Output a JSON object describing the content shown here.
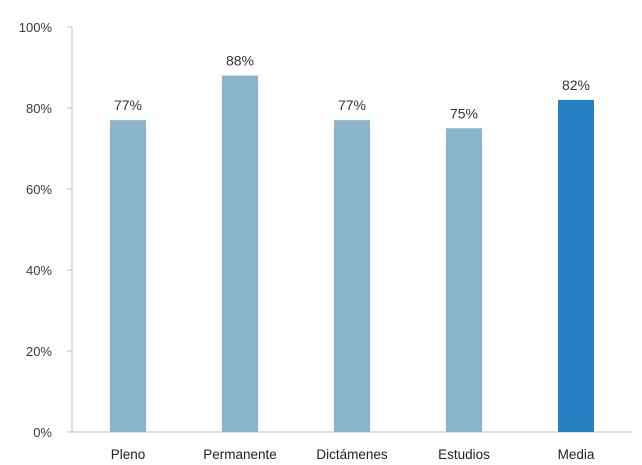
{
  "chart_data": {
    "type": "bar",
    "categories": [
      "Pleno",
      "Permanente",
      "Dictámenes",
      "Estudios",
      "Media"
    ],
    "values": [
      77,
      88,
      77,
      75,
      82
    ],
    "data_labels": [
      "77%",
      "88%",
      "77%",
      "75%",
      "82%"
    ],
    "y_ticks": [
      0,
      20,
      40,
      60,
      80,
      100
    ],
    "y_tick_labels": [
      "0%",
      "20%",
      "40%",
      "60%",
      "80%",
      "100%"
    ],
    "ylim": [
      0,
      100
    ],
    "title": "",
    "xlabel": "",
    "ylabel": "",
    "grid": false,
    "colors": {
      "bar": "#8ab4cc",
      "highlight_bar": "#2581c4",
      "axis": "#bfbfbf",
      "tick_text": "#3a3a3a",
      "category_text": "#222222",
      "data_label_text": "#333333"
    },
    "highlight_categories": [
      "Media"
    ]
  }
}
